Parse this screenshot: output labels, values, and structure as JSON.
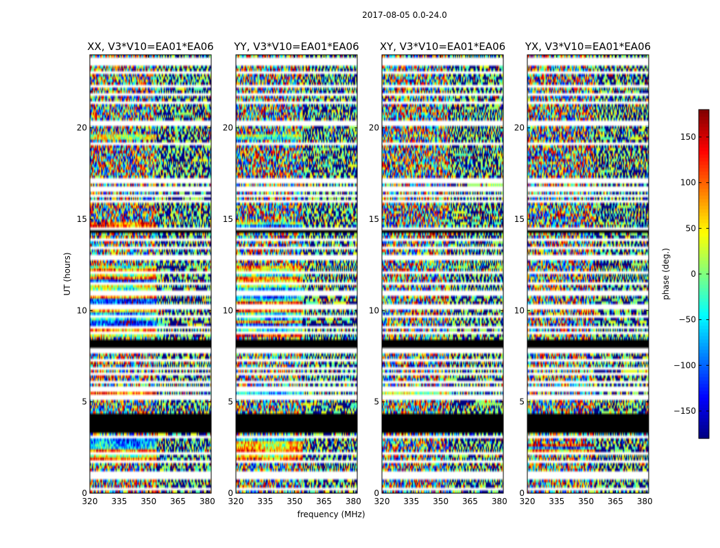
{
  "suptitle": "2017-08-05 0.0-24.0",
  "chart_data": {
    "type": "heatmap",
    "xlabel": "frequency (MHz)",
    "ylabel": "UT (hours)",
    "xlim": [
      320,
      382
    ],
    "ylim": [
      0,
      24
    ],
    "xticks": [
      320,
      335,
      350,
      365,
      380
    ],
    "yticks": [
      0,
      5,
      10,
      15,
      20
    ],
    "colorbar": {
      "label": "phase (deg.)",
      "range": [
        -180,
        180
      ],
      "ticks": [
        -150,
        -100,
        -50,
        0,
        50,
        100,
        150
      ],
      "colormap": "jet",
      "colors": [
        "#00007f",
        "#0000ff",
        "#007fff",
        "#00ffff",
        "#7fff7f",
        "#ffff00",
        "#ff7f00",
        "#ff0000",
        "#7f0000"
      ]
    },
    "flag_color": "#000000",
    "gap_color": "#ffffff",
    "flagged_bands_hours": [
      [
        3.35,
        4.35
      ],
      [
        7.95,
        8.35
      ],
      [
        14.2,
        14.45
      ]
    ],
    "panels": [
      {
        "title": "XX, V3*V10=EA01*EA06",
        "coherent_ranges_hours": [
          [
            1.8,
            3.1
          ],
          [
            5.2,
            5.9
          ],
          [
            8.6,
            12.4
          ],
          [
            14.5,
            14.8
          ],
          [
            19.3,
            19.6
          ]
        ]
      },
      {
        "title": "YY, V3*V10=EA01*EA06",
        "coherent_ranges_hours": [
          [
            1.8,
            3.1
          ],
          [
            5.2,
            5.9
          ],
          [
            8.6,
            12.4
          ],
          [
            14.5,
            14.8
          ],
          [
            19.3,
            19.6
          ]
        ]
      },
      {
        "title": "XY, V3*V10=EA01*EA06",
        "coherent_ranges_hours": [
          [
            5.4,
            5.8
          ]
        ]
      },
      {
        "title": "YX, V3*V10=EA01*EA06",
        "coherent_ranges_hours": [
          [
            2.3,
            2.7
          ]
        ]
      }
    ]
  }
}
